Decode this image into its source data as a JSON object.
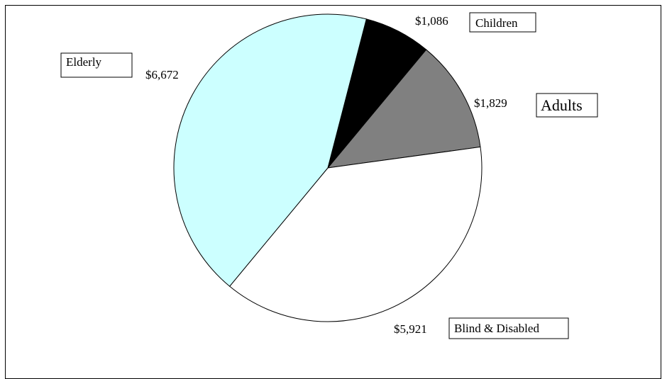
{
  "chart_data": {
    "type": "pie",
    "title": "",
    "slices": [
      {
        "label": "Children",
        "value": 1086,
        "value_text": "$1,086",
        "color": "#000000"
      },
      {
        "label": "Adults",
        "value": 1829,
        "value_text": "$1,829",
        "color": "#808080"
      },
      {
        "label": "Blind & Disabled",
        "value": 5921,
        "value_text": "$5,921",
        "color": "#ffffff"
      },
      {
        "label": "Elderly",
        "value": 6672,
        "value_text": "$6,672",
        "color": "#ccffff"
      }
    ],
    "legend": "labels-in-boxes-beside-slices"
  }
}
